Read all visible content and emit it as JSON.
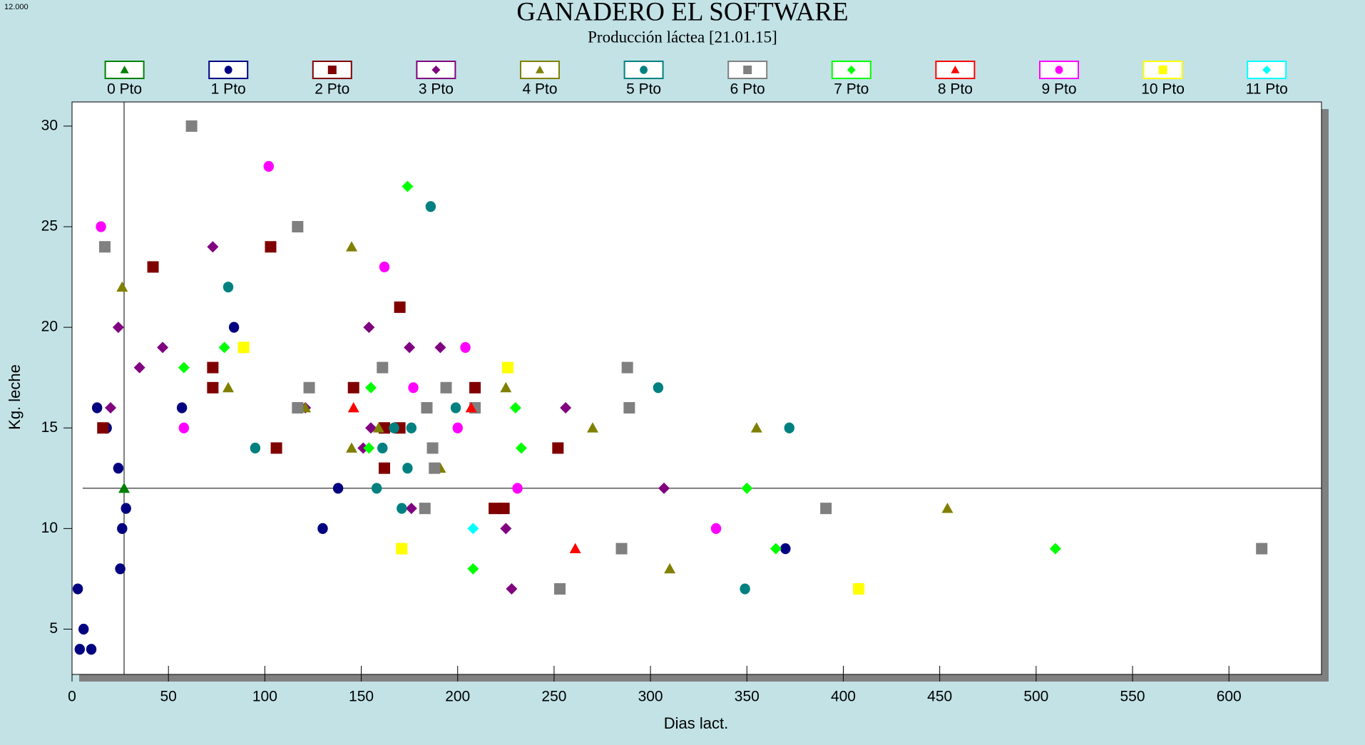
{
  "chart_data": {
    "type": "scatter",
    "corner_label": "12.000",
    "title": "GANADERO EL SOFTWARE",
    "subtitle": "Producción láctea [21.01.15]",
    "x_label": "Dias lact.",
    "y_label": "Kg. leche",
    "xlim": [
      0,
      648
    ],
    "ylim": [
      2.75,
      31.2
    ],
    "xticks": [
      0,
      50,
      100,
      150,
      200,
      250,
      300,
      350,
      400,
      450,
      500,
      550,
      600
    ],
    "yticks": [
      5,
      10,
      15,
      20,
      25,
      30
    ],
    "crosshair": {
      "x": 27,
      "y": 12
    },
    "legend": "top",
    "series": [
      {
        "name": "0 Pto",
        "color": "#008000",
        "marker": "triangle",
        "x": [
          27
        ],
        "values": [
          12
        ]
      },
      {
        "name": "1 Pto",
        "color": "#000080",
        "marker": "circle",
        "x": [
          3,
          4,
          6,
          10,
          13,
          18,
          24,
          26,
          25,
          28,
          57,
          84,
          138,
          130,
          370
        ],
        "values": [
          7,
          4,
          5,
          4,
          16,
          15,
          13,
          10,
          8,
          11,
          16,
          20,
          12,
          10,
          9
        ]
      },
      {
        "name": "2 Pto",
        "color": "#800000",
        "marker": "square",
        "x": [
          16,
          42,
          73,
          73,
          103,
          106,
          146,
          162,
          162,
          170,
          170,
          209,
          219,
          224,
          252
        ],
        "values": [
          15,
          23,
          18,
          17,
          24,
          14,
          17,
          15,
          13,
          21,
          15,
          17,
          11,
          11,
          14
        ]
      },
      {
        "name": "3 Pto",
        "color": "#800080",
        "marker": "diamond",
        "x": [
          20,
          24,
          35,
          47,
          73,
          121,
          151,
          154,
          155,
          175,
          176,
          191,
          225,
          228,
          256,
          307
        ],
        "values": [
          16,
          20,
          18,
          19,
          24,
          16,
          14,
          20,
          15,
          19,
          11,
          19,
          10,
          7,
          16,
          12
        ]
      },
      {
        "name": "4 Pto",
        "color": "#808000",
        "marker": "triangle",
        "x": [
          26,
          81,
          121,
          145,
          145,
          159,
          191,
          225,
          270,
          310,
          355,
          454
        ],
        "values": [
          22,
          17,
          16,
          24,
          14,
          15,
          13,
          17,
          15,
          8,
          15,
          11
        ]
      },
      {
        "name": "5 Pto",
        "color": "#008080",
        "marker": "circle",
        "x": [
          81,
          95,
          158,
          161,
          167,
          171,
          174,
          176,
          186,
          199,
          304,
          349,
          372
        ],
        "values": [
          22,
          14,
          12,
          14,
          15,
          11,
          13,
          15,
          26,
          16,
          17,
          7,
          15
        ]
      },
      {
        "name": "6 Pto",
        "color": "#808080",
        "marker": "square",
        "x": [
          17,
          62,
          117,
          117,
          123,
          161,
          183,
          184,
          187,
          188,
          194,
          209,
          253,
          285,
          288,
          289,
          391,
          617
        ],
        "values": [
          24,
          30,
          25,
          16,
          17,
          18,
          11,
          16,
          14,
          13,
          17,
          16,
          7,
          9,
          18,
          16,
          11,
          9
        ]
      },
      {
        "name": "7 Pto",
        "color": "#00ff00",
        "marker": "diamond",
        "x": [
          58,
          79,
          154,
          155,
          174,
          208,
          230,
          233,
          350,
          365,
          510
        ],
        "values": [
          18,
          19,
          14,
          17,
          27,
          8,
          16,
          14,
          12,
          9,
          9
        ]
      },
      {
        "name": "8 Pto",
        "color": "#ff0000",
        "marker": "triangle",
        "x": [
          146,
          207,
          261
        ],
        "values": [
          16,
          16,
          9
        ]
      },
      {
        "name": "9 Pto",
        "color": "#ff00ff",
        "marker": "circle",
        "x": [
          15,
          58,
          102,
          162,
          177,
          200,
          204,
          231,
          334
        ],
        "values": [
          25,
          15,
          28,
          23,
          17,
          15,
          19,
          12,
          10
        ]
      },
      {
        "name": "10 Pto",
        "color": "#ffff00",
        "marker": "square",
        "x": [
          89,
          171,
          226,
          408
        ],
        "values": [
          19,
          9,
          18,
          7
        ]
      },
      {
        "name": "11 Pto",
        "color": "#00ffff",
        "marker": "diamond",
        "x": [
          208
        ],
        "values": [
          10
        ]
      }
    ]
  }
}
